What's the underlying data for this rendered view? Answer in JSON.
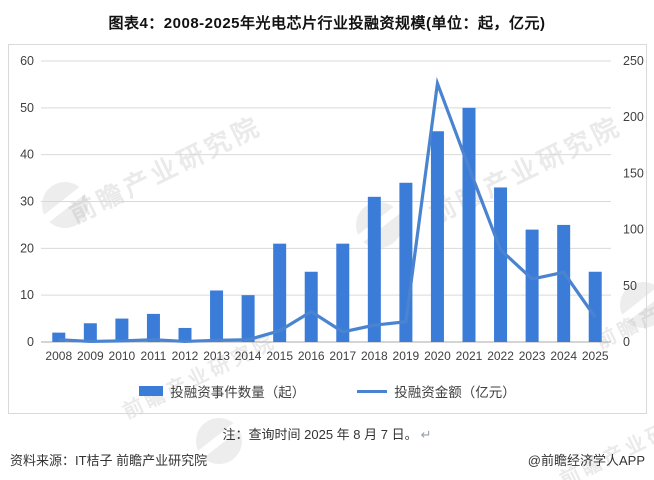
{
  "title": "图表4：2008-2025年光电芯片行业投融资规模(单位：起，亿元)",
  "chart_data": {
    "type": "bar",
    "subtype": "bar+line-combo",
    "categories": [
      "2008",
      "2009",
      "2010",
      "2011",
      "2012",
      "2013",
      "2014",
      "2015",
      "2016",
      "2017",
      "2018",
      "2019",
      "2020",
      "2021",
      "2022",
      "2023",
      "2024",
      "2025"
    ],
    "series": [
      {
        "name": "投融资事件数量（起）",
        "type": "bar",
        "axis": "left",
        "color": "#3b7cd9",
        "values": [
          2,
          4,
          5,
          6,
          3,
          11,
          10,
          21,
          15,
          21,
          31,
          34,
          45,
          50,
          33,
          24,
          25,
          15
        ]
      },
      {
        "name": "投融资金额（亿元）",
        "type": "line",
        "axis": "right",
        "color": "#4a84d0",
        "values": [
          2,
          0.5,
          1,
          2,
          0.5,
          1.5,
          2,
          10,
          27,
          9,
          15,
          18,
          230,
          155,
          82,
          56,
          62,
          22
        ]
      }
    ],
    "left_axis": {
      "min": 0,
      "max": 60,
      "step": 10
    },
    "right_axis": {
      "min": 0,
      "max": 250,
      "step": 50
    },
    "grid": true,
    "legend_position": "bottom"
  },
  "note": {
    "text": "注：查询时间 2025 年 8 月 7 日。",
    "return_mark": "↵"
  },
  "footer": {
    "source": "资料来源：IT桔子 前瞻产业研究院",
    "credit": "@前瞻经济学人APP"
  },
  "watermark": {
    "text": "前瞻产业研究院",
    "logo_name": "qianzhan-crescent-logo"
  },
  "colors": {
    "bar": "#3b7cd9",
    "line": "#4a84d0",
    "gridline": "#d9d9d9",
    "zero_line": "#ababab",
    "axis_text": "#404040",
    "frame_border": "#d9d9d9"
  }
}
